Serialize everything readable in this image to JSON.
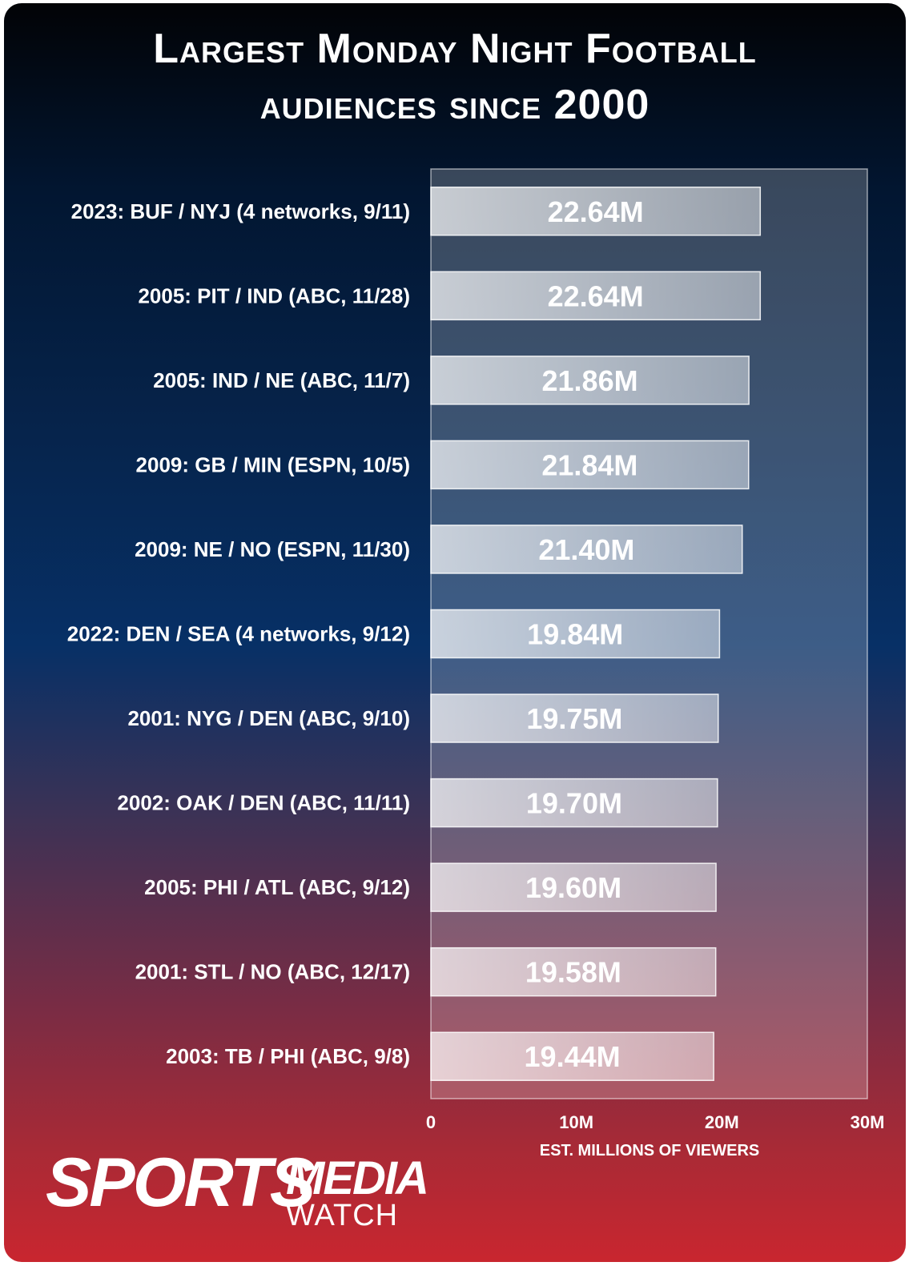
{
  "title": {
    "line1": "Largest Monday Night Football",
    "line2": "audiences since 2000"
  },
  "chart_data": {
    "type": "bar",
    "orientation": "horizontal",
    "categories": [
      "2023: BUF / NYJ (4 networks, 9/11)",
      "2005: PIT / IND (ABC, 11/28)",
      "2005: IND / NE (ABC, 11/7)",
      "2009: GB / MIN (ESPN, 10/5)",
      "2009: NE / NO (ESPN, 11/30)",
      "2022: DEN / SEA (4 networks, 9/12)",
      "2001: NYG / DEN (ABC, 9/10)",
      "2002: OAK / DEN (ABC, 11/11)",
      "2005: PHI / ATL (ABC, 9/12)",
      "2001: STL / NO (ABC, 12/17)",
      "2003: TB / PHI (ABC, 9/8)"
    ],
    "values": [
      22.64,
      22.64,
      21.86,
      21.84,
      21.4,
      19.84,
      19.75,
      19.7,
      19.6,
      19.58,
      19.44
    ],
    "value_labels": [
      "22.64M",
      "22.64M",
      "21.86M",
      "21.84M",
      "21.40M",
      "19.84M",
      "19.75M",
      "19.70M",
      "19.60M",
      "19.58M",
      "19.44M"
    ],
    "xlabel": "EST. MILLIONS OF VIEWERS",
    "xlim": [
      0,
      30
    ],
    "xticks": [
      0,
      10,
      20,
      30
    ],
    "xtick_labels": [
      "0",
      "10M",
      "20M",
      "30M"
    ],
    "grid": false,
    "legend": "none"
  },
  "logo": {
    "sports": "SPORTS",
    "media": "MEDIA",
    "watch": "WATCH"
  }
}
